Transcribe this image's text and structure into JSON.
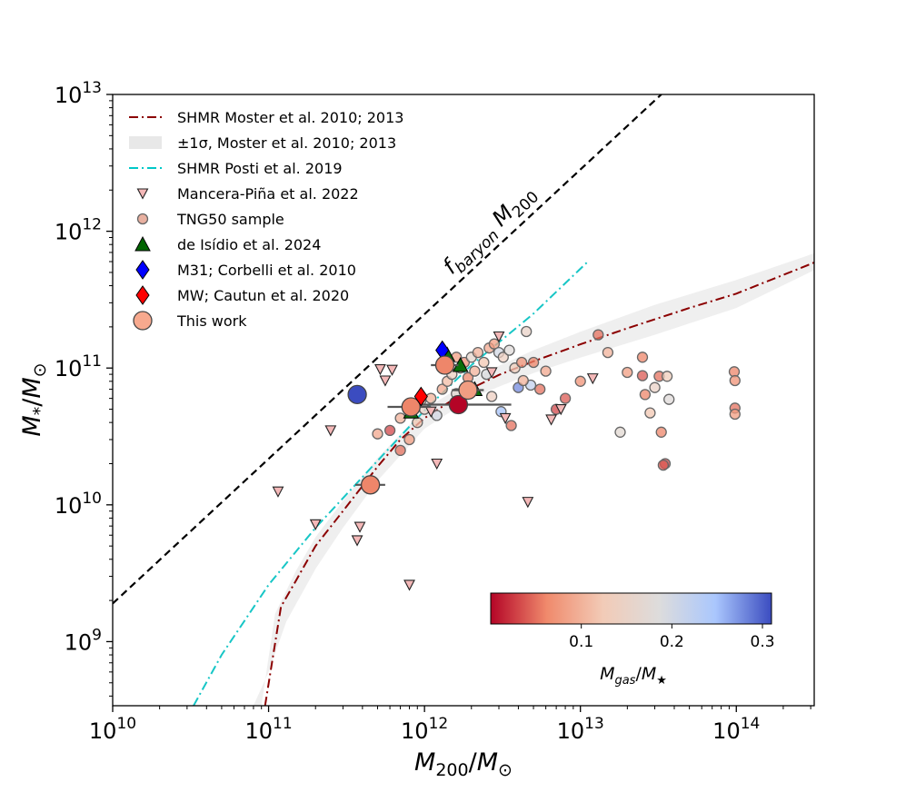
{
  "chart_data": {
    "type": "scatter",
    "x_scale": "log",
    "y_scale": "log",
    "xlim": [
      10000000000.0,
      316000000000000.0
    ],
    "ylim": [
      340000000.0,
      10000000000000.0
    ],
    "xlabel": "M200/M⊙",
    "ylabel": "M*/M⊙",
    "x_ticks": [
      {
        "value": 10000000000.0,
        "base": "10",
        "exp": "10"
      },
      {
        "value": 100000000000.0,
        "base": "10",
        "exp": "11"
      },
      {
        "value": 1000000000000.0,
        "base": "10",
        "exp": "12"
      },
      {
        "value": 10000000000000.0,
        "base": "10",
        "exp": "13"
      },
      {
        "value": 100000000000000.0,
        "base": "10",
        "exp": "14"
      }
    ],
    "y_ticks": [
      {
        "value": 1000000000.0,
        "base": "10",
        "exp": "9"
      },
      {
        "value": 10000000000.0,
        "base": "10",
        "exp": "10"
      },
      {
        "value": 100000000000.0,
        "base": "10",
        "exp": "11"
      },
      {
        "value": 1000000000000.0,
        "base": "10",
        "exp": "12"
      },
      {
        "value": 10000000000000.0,
        "base": "10",
        "exp": "13"
      }
    ],
    "baryon_label": "f_baryon M_200",
    "legend": [
      {
        "label": "SHMR Moster et al. 2010; 2013",
        "marker": "dashdot",
        "color": "#8b0000"
      },
      {
        "label": "±1σ, Moster et al. 2010; 2013",
        "marker": "band",
        "color": "#e8e8e8"
      },
      {
        "label": "SHMR Posti et al. 2019",
        "marker": "dashdot",
        "color": "#00c8c8"
      },
      {
        "label": "Mancera-Piña et al. 2022",
        "marker": "triangle-down",
        "color": "#f4b8b8"
      },
      {
        "label": "TNG50 sample",
        "marker": "circle-small",
        "color": "#e8b0a0"
      },
      {
        "label": "de Isídio et al. 2024",
        "marker": "triangle-up",
        "color": "#006400"
      },
      {
        "label": "M31; Corbelli et al. 2010",
        "marker": "diamond",
        "color": "#0000ff"
      },
      {
        "label": "MW; Cautun et al. 2020",
        "marker": "diamond",
        "color": "#ff0000"
      },
      {
        "label": "This work",
        "marker": "circle-large",
        "color": "#f7a98e"
      }
    ],
    "colorbar": {
      "label": "Mgas/M★",
      "range": [
        0.0,
        0.31
      ],
      "ticks": [
        "0.1",
        "0.2",
        "0.3"
      ],
      "colors": [
        "#b40426",
        "#f08a6c",
        "#f2cbb7",
        "#dddcdc",
        "#aac7fd",
        "#3b4cc0"
      ]
    },
    "series": {
      "moster": [
        [
          95000000000.0,
          340000000.0
        ],
        [
          120000000000.0,
          1800000000.0
        ],
        [
          150000000000.0,
          2800000000.0
        ],
        [
          200000000000.0,
          5000000000.0
        ],
        [
          300000000000.0,
          9000000000.0
        ],
        [
          500000000000.0,
          19000000000.0
        ],
        [
          700000000000.0,
          30000000000.0
        ],
        [
          1000000000000.0,
          43000000000.0
        ],
        [
          1500000000000.0,
          58000000000.0
        ],
        [
          2000000000000.0,
          71000000000.0
        ],
        [
          3000000000000.0,
          89000000000.0
        ],
        [
          5000000000000.0,
          112000000000.0
        ],
        [
          10000000000000.0,
          149000000000.0
        ],
        [
          20000000000000.0,
          195000000000.0
        ],
        [
          50000000000000.0,
          275000000000.0
        ],
        [
          100000000000000.0,
          350000000000.0
        ],
        [
          316000000000000.0,
          590000000000.0
        ]
      ],
      "moster_upper": [
        [
          90000000000.0,
          340000000.0
        ],
        [
          110000000000.0,
          1600000000.0
        ],
        [
          150000000000.0,
          3300000000.0
        ],
        [
          200000000000.0,
          5800000000.0
        ],
        [
          300000000000.0,
          10700000000.0
        ],
        [
          500000000000.0,
          22000000000.0
        ],
        [
          1000000000000.0,
          50000000000.0
        ],
        [
          2000000000000.0,
          82000000000.0
        ],
        [
          3000000000000.0,
          104000000000.0
        ],
        [
          5000000000000.0,
          135000000000.0
        ],
        [
          10000000000000.0,
          184000000000.0
        ],
        [
          30000000000000.0,
          290000000000.0
        ],
        [
          100000000000000.0,
          440000000000.0
        ],
        [
          316000000000000.0,
          690000000000.0
        ]
      ],
      "moster_lower": [
        [
          80000000000.0,
          340000000.0
        ],
        [
          100000000000.0,
          600000000.0
        ],
        [
          130000000000.0,
          1400000000.0
        ],
        [
          200000000000.0,
          3400000000.0
        ],
        [
          300000000000.0,
          6800000000.0
        ],
        [
          500000000000.0,
          15000000000.0
        ],
        [
          1000000000000.0,
          36000000000.0
        ],
        [
          2000000000000.0,
          60000000000.0
        ],
        [
          3000000000000.0,
          73000000000.0
        ],
        [
          5000000000000.0,
          92000000000.0
        ],
        [
          10000000000000.0,
          119000000000.0
        ],
        [
          30000000000000.0,
          175000000000.0
        ],
        [
          100000000000000.0,
          275000000000.0
        ],
        [
          316000000000000.0,
          520000000000.0
        ]
      ],
      "posti": [
        [
          33000000000.0,
          340000000.0
        ],
        [
          50000000000.0,
          800000000.0
        ],
        [
          100000000000.0,
          2600000000.0
        ],
        [
          200000000000.0,
          6800000000.0
        ],
        [
          500000000000.0,
          21000000000.0
        ],
        [
          1000000000000.0,
          49000000000.0
        ],
        [
          2000000000000.0,
          105000000000.0
        ],
        [
          5000000000000.0,
          250000000000.0
        ],
        [
          11000000000000.0,
          590000000000.0
        ]
      ],
      "fbaryon": [
        [
          10000000000.0,
          1900000000.0
        ],
        [
          33000000000000.0,
          10000000000000.0
        ]
      ],
      "mancera": [
        [
          115000000000.0,
          12500000000.0
        ],
        [
          200000000000.0,
          7200000000.0
        ],
        [
          250000000000.0,
          35000000000.0
        ],
        [
          370000000000.0,
          5500000000.0
        ],
        [
          385000000000.0,
          6900000000.0
        ],
        [
          520000000000.0,
          98000000000.0
        ],
        [
          560000000000.0,
          81000000000.0
        ],
        [
          620000000000.0,
          97000000000.0
        ],
        [
          800000000000.0,
          2600000000.0
        ],
        [
          1100000000000.0,
          48000000000.0
        ],
        [
          1200000000000.0,
          20000000000.0
        ],
        [
          2700000000000.0,
          93000000000.0
        ],
        [
          3000000000000.0,
          170000000000.0
        ],
        [
          3300000000000.0,
          43000000000.0
        ],
        [
          4600000000000.0,
          10500000000.0
        ],
        [
          6500000000000.0,
          42000000000.0
        ],
        [
          7500000000000.0,
          50000000000.0
        ],
        [
          12000000000000.0,
          84000000000.0
        ]
      ],
      "tng50": [
        [
          600000000000.0,
          35000000000.0,
          0.03
        ],
        [
          700000000000.0,
          25000000000.0,
          0.05
        ],
        [
          800000000000.0,
          30000000000.0,
          0.08
        ],
        [
          900000000000.0,
          40000000000.0,
          0.12
        ],
        [
          1000000000000.0,
          50000000000.0,
          0.15
        ],
        [
          1100000000000.0,
          60000000000.0,
          0.1
        ],
        [
          1200000000000.0,
          45000000000.0,
          0.2
        ],
        [
          1300000000000.0,
          70000000000.0,
          0.09
        ],
        [
          1400000000000.0,
          80000000000.0,
          0.11
        ],
        [
          1500000000000.0,
          90000000000.0,
          0.14
        ],
        [
          1600000000000.0,
          65000000000.0,
          0.17
        ],
        [
          1700000000000.0,
          100000000000.0,
          0.13
        ],
        [
          1800000000000.0,
          110000000000.0,
          0.07
        ],
        [
          1900000000000.0,
          85000000000.0,
          0.06
        ],
        [
          2000000000000.0,
          120000000000.0,
          0.16
        ],
        [
          2200000000000.0,
          130000000000.0,
          0.1
        ],
        [
          2400000000000.0,
          110000000000.0,
          0.12
        ],
        [
          2600000000000.0,
          140000000000.0,
          0.09
        ],
        [
          2800000000000.0,
          150000000000.0,
          0.08
        ],
        [
          3000000000000.0,
          130000000000.0,
          0.2
        ],
        [
          3200000000000.0,
          120000000000.0,
          0.14
        ],
        [
          3500000000000.0,
          135000000000.0,
          0.18
        ],
        [
          3800000000000.0,
          100000000000.0,
          0.13
        ],
        [
          4200000000000.0,
          110000000000.0,
          0.07
        ],
        [
          4500000000000.0,
          185000000000.0,
          0.15
        ],
        [
          4800000000000.0,
          75000000000.0,
          0.22
        ],
        [
          5000000000000.0,
          110000000000.0,
          0.06
        ],
        [
          5500000000000.0,
          70000000000.0,
          0.05
        ],
        [
          6000000000000.0,
          95000000000.0,
          0.09
        ],
        [
          7000000000000.0,
          50000000000.0,
          0.03
        ],
        [
          8000000000000.0,
          60000000000.0,
          0.04
        ],
        [
          10000000000000.0,
          80000000000.0,
          0.07
        ],
        [
          13000000000000.0,
          175000000000.0,
          0.05
        ],
        [
          15000000000000.0,
          130000000000.0,
          0.1
        ],
        [
          18000000000000.0,
          34000000000.0,
          0.17
        ],
        [
          20000000000000.0,
          93000000000.0,
          0.08
        ],
        [
          25000000000000.0,
          88000000000.0,
          0.04
        ],
        [
          26000000000000.0,
          64000000000.0,
          0.06
        ],
        [
          28000000000000.0,
          47000000000.0,
          0.12
        ],
        [
          30000000000000.0,
          72000000000.0,
          0.15
        ],
        [
          32000000000000.0,
          87000000000.0,
          0.05
        ],
        [
          33000000000000.0,
          34000000000.0,
          0.06
        ],
        [
          35000000000000.0,
          20000000000.0,
          0.03
        ],
        [
          36000000000000.0,
          87000000000.0,
          0.13
        ],
        [
          37000000000000.0,
          59000000000.0,
          0.18
        ],
        [
          34000000000000.0,
          19500000000.0,
          0.04
        ],
        [
          25000000000000.0,
          120000000000.0,
          0.06
        ],
        [
          97000000000000.0,
          94000000000.0,
          0.06
        ],
        [
          98000000000000.0,
          81000000000.0,
          0.07
        ],
        [
          98000000000000.0,
          51000000000.0,
          0.05
        ],
        [
          98000000000000.0,
          46000000000.0,
          0.08
        ],
        [
          500000000000.0,
          33000000000.0,
          0.09
        ],
        [
          700000000000.0,
          43000000000.0,
          0.1
        ],
        [
          950000000000.0,
          58000000000.0,
          0.12
        ],
        [
          1600000000000.0,
          120000000000.0,
          0.08
        ],
        [
          2100000000000.0,
          95000000000.0,
          0.1
        ],
        [
          2500000000000.0,
          90000000000.0,
          0.19
        ],
        [
          3100000000000.0,
          48000000000.0,
          0.25
        ],
        [
          4000000000000.0,
          72000000000.0,
          0.28
        ],
        [
          4300000000000.0,
          81000000000.0,
          0.1
        ],
        [
          3600000000000.0,
          38000000000.0,
          0.05
        ],
        [
          2700000000000.0,
          62000000000.0,
          0.14
        ]
      ],
      "isidio": [
        [
          820000000000.0,
          48000000000.0
        ],
        [
          1400000000000.0,
          125000000000.0
        ],
        [
          1700000000000.0,
          105000000000.0
        ],
        [
          2100000000000.0,
          70000000000.0
        ]
      ],
      "m31": [
        [
          1300000000000.0,
          135000000000.0
        ]
      ],
      "mw": [
        [
          950000000000.0,
          62000000000.0
        ]
      ],
      "this_work": [
        {
          "x": 370000000000.0,
          "y": 64000000000.0,
          "c": 0.31
        },
        {
          "x": 450000000000.0,
          "y": 14000000000.0,
          "c": 0.06,
          "xerr": [
            360000000000.0,
            560000000000.0
          ]
        },
        {
          "x": 820000000000.0,
          "y": 52000000000.0,
          "c": 0.06,
          "xerr": [
            580000000000.0,
            1100000000000.0
          ]
        },
        {
          "x": 1350000000000.0,
          "y": 105000000000.0,
          "c": 0.06,
          "xerr": [
            1100000000000.0,
            1650000000000.0
          ]
        },
        {
          "x": 1650000000000.0,
          "y": 54000000000.0,
          "c": 0.0,
          "xerr": [
            900000000000.0,
            3600000000000.0
          ]
        },
        {
          "x": 1900000000000.0,
          "y": 69000000000.0,
          "c": 0.08,
          "xerr": [
            1500000000000.0,
            2400000000000.0
          ]
        }
      ]
    }
  }
}
